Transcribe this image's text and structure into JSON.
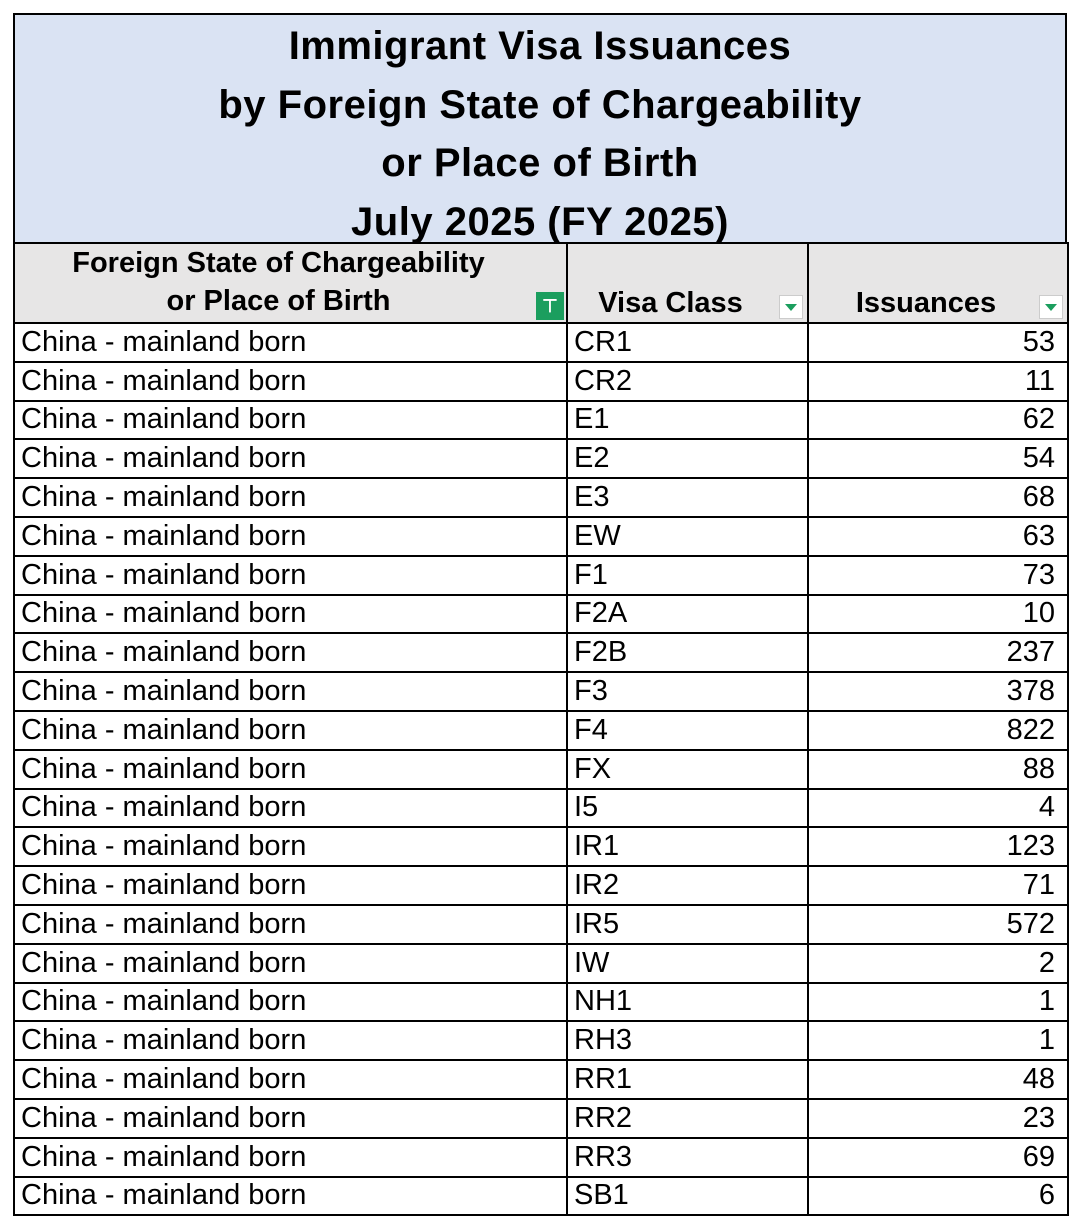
{
  "title": [
    "Immigrant Visa Issuances",
    "by Foreign State of Chargeability",
    "or Place of Birth",
    "July 2025 (FY 2025)"
  ],
  "columns": [
    "Foreign State of Chargeability or Place of Birth",
    "Visa Class",
    "Issuances"
  ],
  "header_lines": [
    "Foreign State of Chargeability",
    "or Place of Birth"
  ],
  "filter_active_color": "#1b9e5e",
  "rows": [
    [
      "China - mainland born",
      "CR1",
      "53"
    ],
    [
      "China - mainland born",
      "CR2",
      "11"
    ],
    [
      "China - mainland born",
      "E1",
      "62"
    ],
    [
      "China - mainland born",
      "E2",
      "54"
    ],
    [
      "China - mainland born",
      "E3",
      "68"
    ],
    [
      "China - mainland born",
      "EW",
      "63"
    ],
    [
      "China - mainland born",
      "F1",
      "73"
    ],
    [
      "China - mainland born",
      "F2A",
      "10"
    ],
    [
      "China - mainland born",
      "F2B",
      "237"
    ],
    [
      "China - mainland born",
      "F3",
      "378"
    ],
    [
      "China - mainland born",
      "F4",
      "822"
    ],
    [
      "China - mainland born",
      "FX",
      "88"
    ],
    [
      "China - mainland born",
      "I5",
      "4"
    ],
    [
      "China - mainland born",
      "IR1",
      "123"
    ],
    [
      "China - mainland born",
      "IR2",
      "71"
    ],
    [
      "China - mainland born",
      "IR5",
      "572"
    ],
    [
      "China - mainland born",
      "IW",
      "2"
    ],
    [
      "China - mainland born",
      "NH1",
      "1"
    ],
    [
      "China - mainland born",
      "RH3",
      "1"
    ],
    [
      "China - mainland born",
      "RR1",
      "48"
    ],
    [
      "China - mainland born",
      "RR2",
      "23"
    ],
    [
      "China - mainland born",
      "RR3",
      "69"
    ],
    [
      "China - mainland born",
      "SB1",
      "6"
    ]
  ]
}
